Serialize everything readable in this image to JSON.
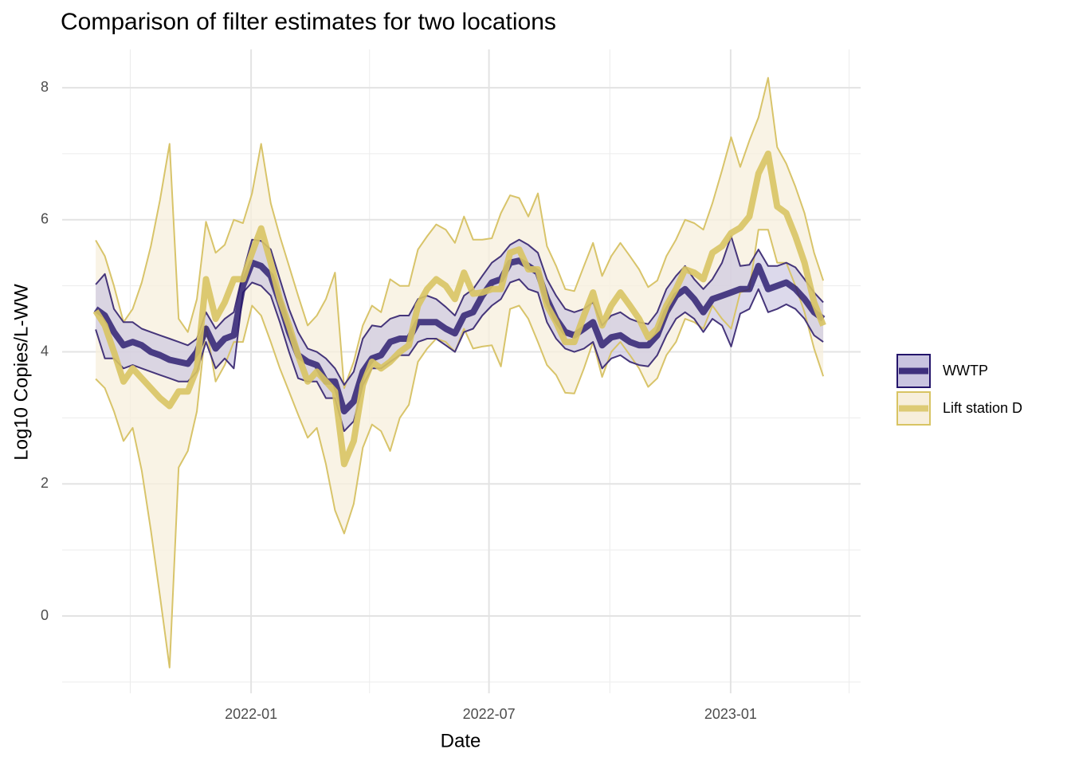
{
  "chart_data": {
    "type": "ribbon-line",
    "title": "Comparison of filter estimates for two locations",
    "x_label": "Date",
    "y_label": "Log10 Copies/L-WW",
    "legend_position": "right",
    "grid": true,
    "xlim": [
      2021.606,
      2023.271
    ],
    "xticks": [
      {
        "value": 2022,
        "label": "2022-01"
      },
      {
        "value": 2022.496,
        "label": "2022-07"
      },
      {
        "value": 2023,
        "label": "2023-01"
      }
    ],
    "x_minor_ticks": [
      2021.748,
      2022.247,
      2022.748,
      2023.247
    ],
    "ylim": [
      -1.17,
      8.58
    ],
    "yticks": [
      0,
      2,
      4,
      6,
      8
    ],
    "y_minor_ticks": [
      -1,
      1,
      3,
      5,
      7
    ],
    "x": [
      2021.676,
      2021.695,
      2021.714,
      2021.734,
      2021.753,
      2021.772,
      2021.791,
      2021.81,
      2021.83,
      2021.849,
      2021.868,
      2021.887,
      2021.906,
      2021.926,
      2021.945,
      2021.964,
      2021.983,
      2022.002,
      2022.021,
      2022.041,
      2022.06,
      2022.079,
      2022.098,
      2022.118,
      2022.137,
      2022.156,
      2022.175,
      2022.194,
      2022.214,
      2022.233,
      2022.252,
      2022.271,
      2022.29,
      2022.31,
      2022.329,
      2022.348,
      2022.367,
      2022.386,
      2022.406,
      2022.425,
      2022.444,
      2022.463,
      2022.482,
      2022.502,
      2022.521,
      2022.54,
      2022.559,
      2022.578,
      2022.598,
      2022.617,
      2022.636,
      2022.655,
      2022.674,
      2022.694,
      2022.713,
      2022.732,
      2022.751,
      2022.77,
      2022.79,
      2022.809,
      2022.828,
      2022.847,
      2022.866,
      2022.886,
      2022.905,
      2022.924,
      2022.943,
      2022.962,
      2022.982,
      2023.001,
      2023.02,
      2023.039,
      2023.058,
      2023.078,
      2023.097,
      2023.116,
      2023.135,
      2023.154,
      2023.174,
      2023.193
    ],
    "series": [
      {
        "name": "WWTP",
        "color": "#24156b",
        "fill": "#c9c4e0",
        "edge_color": "#45357a",
        "values": [
          4.65,
          4.55,
          4.3,
          4.1,
          4.15,
          4.1,
          4.0,
          3.95,
          3.88,
          3.85,
          3.82,
          4.0,
          4.35,
          4.05,
          4.2,
          4.25,
          5.0,
          5.35,
          5.3,
          5.15,
          4.75,
          4.3,
          3.95,
          3.85,
          3.8,
          3.55,
          3.55,
          3.1,
          3.25,
          3.7,
          3.9,
          3.95,
          4.15,
          4.2,
          4.2,
          4.45,
          4.45,
          4.45,
          4.35,
          4.28,
          4.55,
          4.6,
          4.85,
          5.05,
          5.1,
          5.35,
          5.38,
          5.3,
          5.2,
          4.8,
          4.5,
          4.3,
          4.25,
          4.35,
          4.45,
          4.1,
          4.22,
          4.25,
          4.15,
          4.1,
          4.1,
          4.25,
          4.6,
          4.85,
          4.95,
          4.8,
          4.6,
          4.8,
          4.85,
          4.9,
          4.95,
          4.95,
          5.3,
          4.95,
          5.0,
          5.05,
          4.95,
          4.8,
          4.6,
          4.5
        ],
        "lower": [
          4.34,
          3.9,
          3.9,
          3.75,
          3.8,
          3.75,
          3.7,
          3.65,
          3.6,
          3.55,
          3.55,
          3.7,
          4.15,
          3.75,
          3.9,
          3.75,
          4.9,
          5.05,
          5.0,
          4.85,
          4.45,
          4.0,
          3.6,
          3.55,
          3.55,
          3.3,
          3.3,
          2.8,
          2.95,
          3.5,
          3.75,
          3.75,
          3.85,
          3.95,
          3.95,
          4.15,
          4.2,
          4.2,
          4.1,
          4.0,
          4.3,
          4.35,
          4.55,
          4.7,
          4.8,
          5.05,
          5.1,
          4.95,
          4.9,
          4.45,
          4.2,
          4.05,
          4.0,
          4.05,
          4.15,
          3.75,
          3.9,
          3.95,
          3.85,
          3.8,
          3.78,
          3.95,
          4.25,
          4.5,
          4.6,
          4.5,
          4.3,
          4.5,
          4.4,
          4.08,
          4.58,
          4.65,
          4.95,
          4.6,
          4.65,
          4.72,
          4.65,
          4.5,
          4.25,
          4.15
        ],
        "upper": [
          5.02,
          5.18,
          4.65,
          4.45,
          4.45,
          4.35,
          4.3,
          4.25,
          4.2,
          4.15,
          4.1,
          4.2,
          4.6,
          4.35,
          4.5,
          4.6,
          5.2,
          5.7,
          5.68,
          5.55,
          5.1,
          4.65,
          4.3,
          4.05,
          4.0,
          3.9,
          3.75,
          3.5,
          3.7,
          4.2,
          4.4,
          4.38,
          4.5,
          4.55,
          4.55,
          4.8,
          4.85,
          4.8,
          4.68,
          4.55,
          4.85,
          4.95,
          5.15,
          5.35,
          5.45,
          5.62,
          5.7,
          5.62,
          5.5,
          5.1,
          4.85,
          4.65,
          4.6,
          4.65,
          4.75,
          4.4,
          4.55,
          4.6,
          4.5,
          4.45,
          4.42,
          4.6,
          4.95,
          5.15,
          5.3,
          5.1,
          4.95,
          5.1,
          5.35,
          5.75,
          5.3,
          5.32,
          5.55,
          5.3,
          5.3,
          5.35,
          5.28,
          5.1,
          4.9,
          4.75
        ]
      },
      {
        "name": "Lift station D",
        "color": "#d8c463",
        "fill": "#f7efdc",
        "edge_color": "#d8c46a",
        "values": [
          4.62,
          4.4,
          4.0,
          3.55,
          3.75,
          3.6,
          3.45,
          3.3,
          3.18,
          3.4,
          3.4,
          3.75,
          5.1,
          4.5,
          4.75,
          5.1,
          5.1,
          5.5,
          5.87,
          5.35,
          4.8,
          4.4,
          3.95,
          3.55,
          3.7,
          3.55,
          3.4,
          2.3,
          2.65,
          3.5,
          3.85,
          3.75,
          3.85,
          4.0,
          4.1,
          4.7,
          4.95,
          5.1,
          5.0,
          4.8,
          5.2,
          4.88,
          4.9,
          4.95,
          4.95,
          5.5,
          5.55,
          5.25,
          5.25,
          4.7,
          4.45,
          4.15,
          4.15,
          4.55,
          4.9,
          4.4,
          4.7,
          4.9,
          4.7,
          4.5,
          4.22,
          4.35,
          4.7,
          4.95,
          5.25,
          5.2,
          5.1,
          5.5,
          5.6,
          5.8,
          5.88,
          6.05,
          6.7,
          7.0,
          6.2,
          6.1,
          5.75,
          5.35,
          4.75,
          4.4
        ],
        "lower": [
          3.59,
          3.45,
          3.1,
          2.65,
          2.85,
          2.2,
          1.3,
          0.3,
          -0.78,
          2.25,
          2.5,
          3.1,
          4.4,
          3.55,
          3.8,
          4.15,
          4.15,
          4.7,
          4.55,
          4.15,
          3.75,
          3.4,
          3.05,
          2.7,
          2.85,
          2.3,
          1.6,
          1.25,
          1.7,
          2.55,
          2.9,
          2.8,
          2.5,
          3.0,
          3.2,
          3.85,
          4.05,
          4.2,
          4.15,
          4.0,
          4.35,
          4.05,
          4.08,
          4.1,
          3.78,
          4.65,
          4.7,
          4.5,
          4.15,
          3.8,
          3.65,
          3.38,
          3.37,
          3.75,
          4.15,
          3.62,
          4.0,
          4.15,
          3.95,
          3.75,
          3.47,
          3.6,
          3.95,
          4.15,
          4.5,
          4.45,
          4.35,
          4.7,
          4.5,
          4.35,
          4.9,
          4.95,
          5.85,
          5.85,
          5.35,
          5.35,
          5.0,
          4.6,
          4.05,
          3.63
        ],
        "upper": [
          5.69,
          5.45,
          5.0,
          4.45,
          4.65,
          5.05,
          5.6,
          6.3,
          7.15,
          4.5,
          4.3,
          4.8,
          5.97,
          5.5,
          5.62,
          6.0,
          5.95,
          6.4,
          7.15,
          6.25,
          5.75,
          5.3,
          4.85,
          4.4,
          4.55,
          4.8,
          5.2,
          3.45,
          3.85,
          4.4,
          4.7,
          4.6,
          5.1,
          5.0,
          5.0,
          5.55,
          5.75,
          5.93,
          5.85,
          5.65,
          6.05,
          5.7,
          5.7,
          5.72,
          6.1,
          6.37,
          6.33,
          6.05,
          6.4,
          5.6,
          5.3,
          4.95,
          4.92,
          5.3,
          5.65,
          5.15,
          5.45,
          5.65,
          5.45,
          5.25,
          4.98,
          5.08,
          5.45,
          5.7,
          6.0,
          5.95,
          5.85,
          6.25,
          6.75,
          7.25,
          6.8,
          7.2,
          7.55,
          8.15,
          7.1,
          6.85,
          6.5,
          6.1,
          5.5,
          5.08
        ]
      }
    ]
  }
}
